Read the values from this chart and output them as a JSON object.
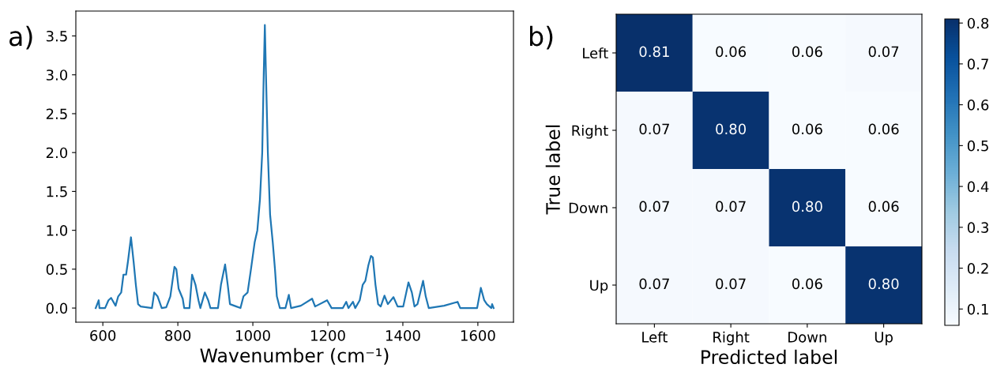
{
  "chart_data": [
    {
      "type": "line",
      "xlabel": "Wavenumber (cm⁻¹)",
      "annotations": [
        "a)"
      ],
      "x": [
        581,
        589,
        591,
        606,
        615,
        622,
        634,
        641,
        649,
        655,
        662,
        667,
        675,
        682,
        688,
        694,
        701,
        731,
        737,
        746,
        757,
        769,
        780,
        791,
        796,
        802,
        813,
        817,
        831,
        838,
        847,
        855,
        860,
        872,
        881,
        887,
        907,
        915,
        926,
        933,
        939,
        956,
        967,
        975,
        986,
        995,
        1005,
        1012,
        1019,
        1025,
        1029,
        1032,
        1035,
        1040,
        1046,
        1053,
        1059,
        1064,
        1072,
        1087,
        1096,
        1102,
        1128,
        1158,
        1166,
        1198,
        1210,
        1240,
        1249,
        1255,
        1267,
        1273,
        1285,
        1293,
        1300,
        1308,
        1315,
        1320,
        1327,
        1334,
        1341,
        1351,
        1360,
        1375,
        1386,
        1401,
        1415,
        1424,
        1431,
        1439,
        1454,
        1461,
        1469,
        1510,
        1546,
        1553,
        1598,
        1608,
        1617,
        1624,
        1636,
        1638,
        1642
      ],
      "series": [
        {
          "color": "#1f77b4",
          "values": [
            0,
            0.1,
            0,
            0,
            0.1,
            0.13,
            0.03,
            0.15,
            0.2,
            0.43,
            0.43,
            0.6,
            0.91,
            0.6,
            0.3,
            0.05,
            0.02,
            0,
            0.2,
            0.15,
            0,
            0.01,
            0.15,
            0.53,
            0.5,
            0.25,
            0.12,
            0,
            0,
            0.43,
            0.3,
            0.1,
            0,
            0.2,
            0.1,
            0,
            0,
            0.3,
            0.56,
            0.3,
            0.05,
            0.02,
            0,
            0.15,
            0.2,
            0.5,
            0.85,
            1.0,
            1.4,
            2.0,
            3.0,
            3.64,
            3.0,
            2.0,
            1.2,
            0.85,
            0.5,
            0.15,
            0,
            0,
            0.17,
            0,
            0.03,
            0.12,
            0.02,
            0.1,
            0,
            0,
            0.08,
            0,
            0.08,
            0,
            0.1,
            0.3,
            0.35,
            0.55,
            0.67,
            0.65,
            0.3,
            0.05,
            0.02,
            0.16,
            0.05,
            0.14,
            0.02,
            0.02,
            0.33,
            0.2,
            0.02,
            0.05,
            0.35,
            0.15,
            0,
            0.03,
            0.08,
            0,
            0,
            0.26,
            0.1,
            0.05,
            0,
            0.05,
            0
          ]
        }
      ],
      "xlim": [
        528,
        1695
      ],
      "xticks": [
        600,
        800,
        1000,
        1200,
        1400,
        1600
      ],
      "ylim": [
        -0.182,
        3.82
      ],
      "yticks": [
        {
          "value": 0,
          "label": "0.0"
        },
        0.5,
        {
          "value": 1,
          "label": "1.0"
        },
        1.5,
        {
          "value": 2,
          "label": "2.0"
        },
        2.5,
        {
          "value": 3,
          "label": "3.0"
        },
        3.5
      ],
      "grid": false
    },
    {
      "type": "heatmap",
      "xlabel": "Predicted label",
      "ylabel": "True label",
      "annotations": [
        "b)"
      ],
      "categories": [
        "Left",
        "Right",
        "Down",
        "Up"
      ],
      "y_categories": [
        "Left",
        "Right",
        "Down",
        "Up"
      ],
      "cells": [
        [
          0.81,
          0.06,
          0.06,
          0.07
        ],
        [
          0.07,
          0.8,
          0.06,
          0.06
        ],
        [
          0.07,
          0.07,
          0.8,
          0.06
        ],
        [
          0.07,
          0.07,
          0.06,
          0.8
        ]
      ],
      "cell_labels": [
        [
          "0.81",
          "0.06",
          "0.06",
          "0.07"
        ],
        [
          "0.07",
          "0.80",
          "0.06",
          "0.06"
        ],
        [
          "0.07",
          "0.07",
          "0.80",
          "0.06"
        ],
        [
          "0.07",
          "0.07",
          "0.06",
          "0.80"
        ]
      ],
      "clim": [
        0.06,
        0.81
      ],
      "cticks": [
        0.1,
        0.2,
        0.3,
        0.4,
        0.5,
        0.6,
        0.7,
        0.8
      ]
    }
  ]
}
